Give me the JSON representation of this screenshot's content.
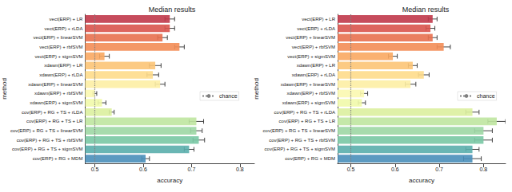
{
  "chart_data": [
    {
      "type": "bar",
      "orientation": "horizontal",
      "title": "Median results",
      "x_label": "accuracy",
      "y_label": "method",
      "categories": [
        "vect(ERP) + LR",
        "vect(ERP) + rLDA",
        "vect(ERP) + linearSVM",
        "vect(ERP) + rbfSVM",
        "vect(ERP) + sigmSVM",
        "xdawn(ERP) + LR",
        "xdawn(ERP) + rLDA",
        "xdawn(ERP) + linearSVM",
        "xdawn(ERP) + rbfSVM",
        "xdawn(ERP) + sigmSVM",
        "cov(ERP) + RG + TS + rLDA",
        "cov(ERP) + RG + TS + LR",
        "cov(ERP) + RG + TS + linearSVM",
        "cov(ERP) + RG + TS + rbfSVM",
        "cov(ERP) + RG + TS + sigmSVM",
        "cov(ERP) + RG + MDM"
      ],
      "values": [
        0.655,
        0.655,
        0.64,
        0.675,
        0.52,
        0.625,
        0.62,
        0.635,
        0.5,
        0.515,
        0.535,
        0.71,
        0.71,
        0.715,
        0.695,
        0.605
      ],
      "errors": [
        0.01,
        0.01,
        0.01,
        0.01,
        0.01,
        0.012,
        0.012,
        0.01,
        0.004,
        0.008,
        0.005,
        0.015,
        0.012,
        0.012,
        0.01,
        0.008
      ],
      "colors": [
        "#c0384a",
        "#d9534c",
        "#e8704f",
        "#f38d57",
        "#f9a862",
        "#fcc476",
        "#fedb8b",
        "#fdeea4",
        "#fbf8b0",
        "#f1f9aa",
        "#dcf09e",
        "#bfe5a0",
        "#9dd7a4",
        "#79c8a4",
        "#5aaeac",
        "#4a8fba"
      ],
      "xlim": [
        0.48,
        0.83
      ],
      "xticks": [
        0.5,
        0.6,
        0.7,
        0.8
      ],
      "grid": false,
      "reference_line": {
        "value": 0.5,
        "label": "chance",
        "color": "#808080",
        "line_style": "dotted"
      },
      "legend": "right"
    },
    {
      "type": "bar",
      "orientation": "horizontal",
      "title": "Median results",
      "x_label": "accuracy",
      "y_label": "method",
      "categories": [
        "vect(ERP) + LR",
        "vect(ERP) + rLDA",
        "vect(ERP) + linearSVM",
        "vect(ERP) + rbfSVM",
        "vect(ERP) + sigmSVM",
        "xdawn(ERP) + LR",
        "xdawn(ERP) + rLDA",
        "xdawn(ERP) + linearSVM",
        "xdawn(ERP) + rbfSVM",
        "xdawn(ERP) + sigmSVM",
        "cov(ERP) + RG + TS + rLDA",
        "cov(ERP) + RG + TS + LR",
        "cov(ERP) + RG + TS + linearSVM",
        "cov(ERP) + RG + TS + rbfSVM",
        "cov(ERP) + RG + TS + sigmSVM",
        "cov(ERP) + RG + MDM"
      ],
      "values": [
        0.685,
        0.68,
        0.685,
        0.71,
        0.595,
        0.64,
        0.665,
        0.635,
        0.53,
        0.525,
        0.775,
        0.83,
        0.8,
        0.8,
        0.775,
        0.775
      ],
      "errors": [
        0.01,
        0.01,
        0.01,
        0.015,
        0.01,
        0.01,
        0.012,
        0.012,
        0.008,
        0.008,
        0.015,
        0.02,
        0.02,
        0.02,
        0.015,
        0.02
      ],
      "colors": [
        "#c0384a",
        "#d9534c",
        "#e8704f",
        "#f38d57",
        "#f9a862",
        "#fcc476",
        "#fedb8b",
        "#fdeea4",
        "#fbf8b0",
        "#f1f9aa",
        "#dcf09e",
        "#bfe5a0",
        "#9dd7a4",
        "#79c8a4",
        "#5aaeac",
        "#4a8fba"
      ],
      "xlim": [
        0.47,
        0.85
      ],
      "xticks": [
        0.5,
        0.6,
        0.7,
        0.8
      ],
      "grid": false,
      "reference_line": {
        "value": 0.5,
        "label": "chance",
        "color": "#808080",
        "line_style": "dotted"
      },
      "legend": "right"
    }
  ]
}
